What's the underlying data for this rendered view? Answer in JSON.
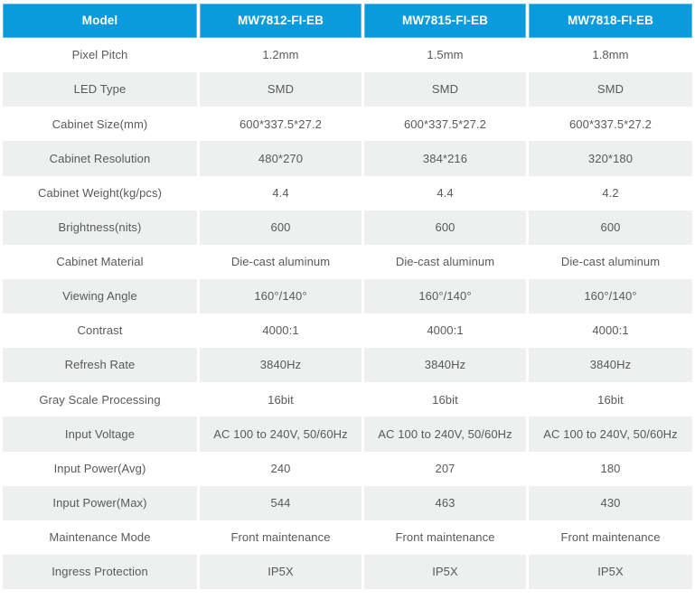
{
  "page": {
    "background_color": "#ffffff"
  },
  "table": {
    "accent_color": "#099bdc",
    "row_alt_color": "#eeefef",
    "header_text_color": "#ffffff",
    "body_text_color": "#58595b",
    "columns": [
      "Model",
      "MW7812-FI-EB",
      "MW7815-FI-EB",
      "MW7818-FI-EB"
    ],
    "rows": [
      {
        "label": "Pixel Pitch",
        "values": [
          "1.2mm",
          "1.5mm",
          "1.8mm"
        ]
      },
      {
        "label": "LED Type",
        "values": [
          "SMD",
          "SMD",
          "SMD"
        ]
      },
      {
        "label": "Cabinet Size(mm)",
        "values": [
          "600*337.5*27.2",
          "600*337.5*27.2",
          "600*337.5*27.2"
        ]
      },
      {
        "label": "Cabinet Resolution",
        "values": [
          "480*270",
          "384*216",
          "320*180"
        ]
      },
      {
        "label": "Cabinet Weight(kg/pcs)",
        "values": [
          "4.4",
          "4.4",
          "4.2"
        ]
      },
      {
        "label": "Brightness(nits)",
        "values": [
          "600",
          "600",
          "600"
        ]
      },
      {
        "label": "Cabinet Material",
        "values": [
          "Die-cast aluminum",
          "Die-cast aluminum",
          "Die-cast aluminum"
        ]
      },
      {
        "label": "Viewing Angle",
        "values": [
          "160°/140°",
          "160°/140°",
          "160°/140°"
        ]
      },
      {
        "label": "Contrast",
        "values": [
          "4000:1",
          "4000:1",
          "4000:1"
        ]
      },
      {
        "label": "Refresh Rate",
        "values": [
          "3840Hz",
          "3840Hz",
          "3840Hz"
        ]
      },
      {
        "label": "Gray Scale Processing",
        "values": [
          "16bit",
          "16bit",
          "16bit"
        ]
      },
      {
        "label": "Input Voltage",
        "values": [
          "AC 100 to 240V, 50/60Hz",
          "AC 100 to 240V, 50/60Hz",
          "AC 100 to 240V, 50/60Hz"
        ]
      },
      {
        "label": "Input Power(Avg)",
        "values": [
          "240",
          "207",
          "180"
        ]
      },
      {
        "label": "Input Power(Max)",
        "values": [
          "544",
          "463",
          "430"
        ]
      },
      {
        "label": "Maintenance Mode",
        "values": [
          "Front maintenance",
          "Front maintenance",
          "Front maintenance"
        ]
      },
      {
        "label": "Ingress Protection",
        "values": [
          "IP5X",
          "IP5X",
          "IP5X"
        ]
      }
    ]
  }
}
